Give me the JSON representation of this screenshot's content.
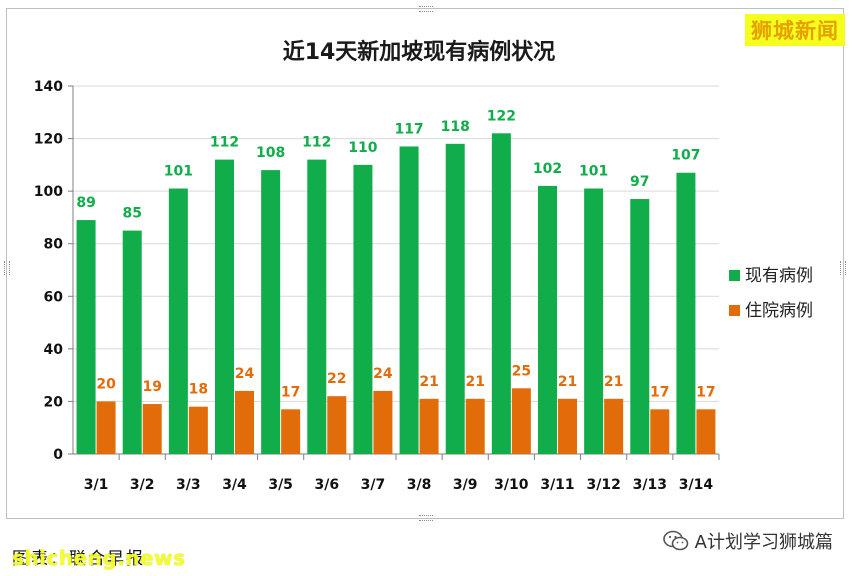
{
  "brand": "狮城新闻",
  "caption": {
    "note": "图表：联合早报",
    "watermark": "shicheng.news"
  },
  "account": {
    "label": "A计划学习狮城篇",
    "icon": "wechat-icon"
  },
  "colors": {
    "series1": "#12ad4b",
    "series2": "#e36c0a",
    "label1": "#12ad4b",
    "label2": "#e36c0a",
    "grid": "#d9d9d9",
    "badge_bg": "#f5ff1e"
  },
  "chart_data": {
    "type": "bar",
    "title": "近14天新加坡现有病例状况",
    "categories": [
      "3/1",
      "3/2",
      "3/3",
      "3/4",
      "3/5",
      "3/6",
      "3/7",
      "3/8",
      "3/9",
      "3/10",
      "3/11",
      "3/12",
      "3/13",
      "3/14"
    ],
    "series": [
      {
        "name": "现有病例",
        "values": [
          89,
          85,
          101,
          112,
          108,
          112,
          110,
          117,
          118,
          122,
          102,
          101,
          97,
          107
        ]
      },
      {
        "name": "住院病例",
        "values": [
          20,
          19,
          18,
          24,
          17,
          22,
          24,
          21,
          21,
          25,
          21,
          21,
          17,
          17
        ]
      }
    ],
    "ylim": [
      0,
      140
    ],
    "yticks": [
      0,
      20,
      40,
      60,
      80,
      100,
      120,
      140
    ],
    "grid": true,
    "legend": "right"
  }
}
